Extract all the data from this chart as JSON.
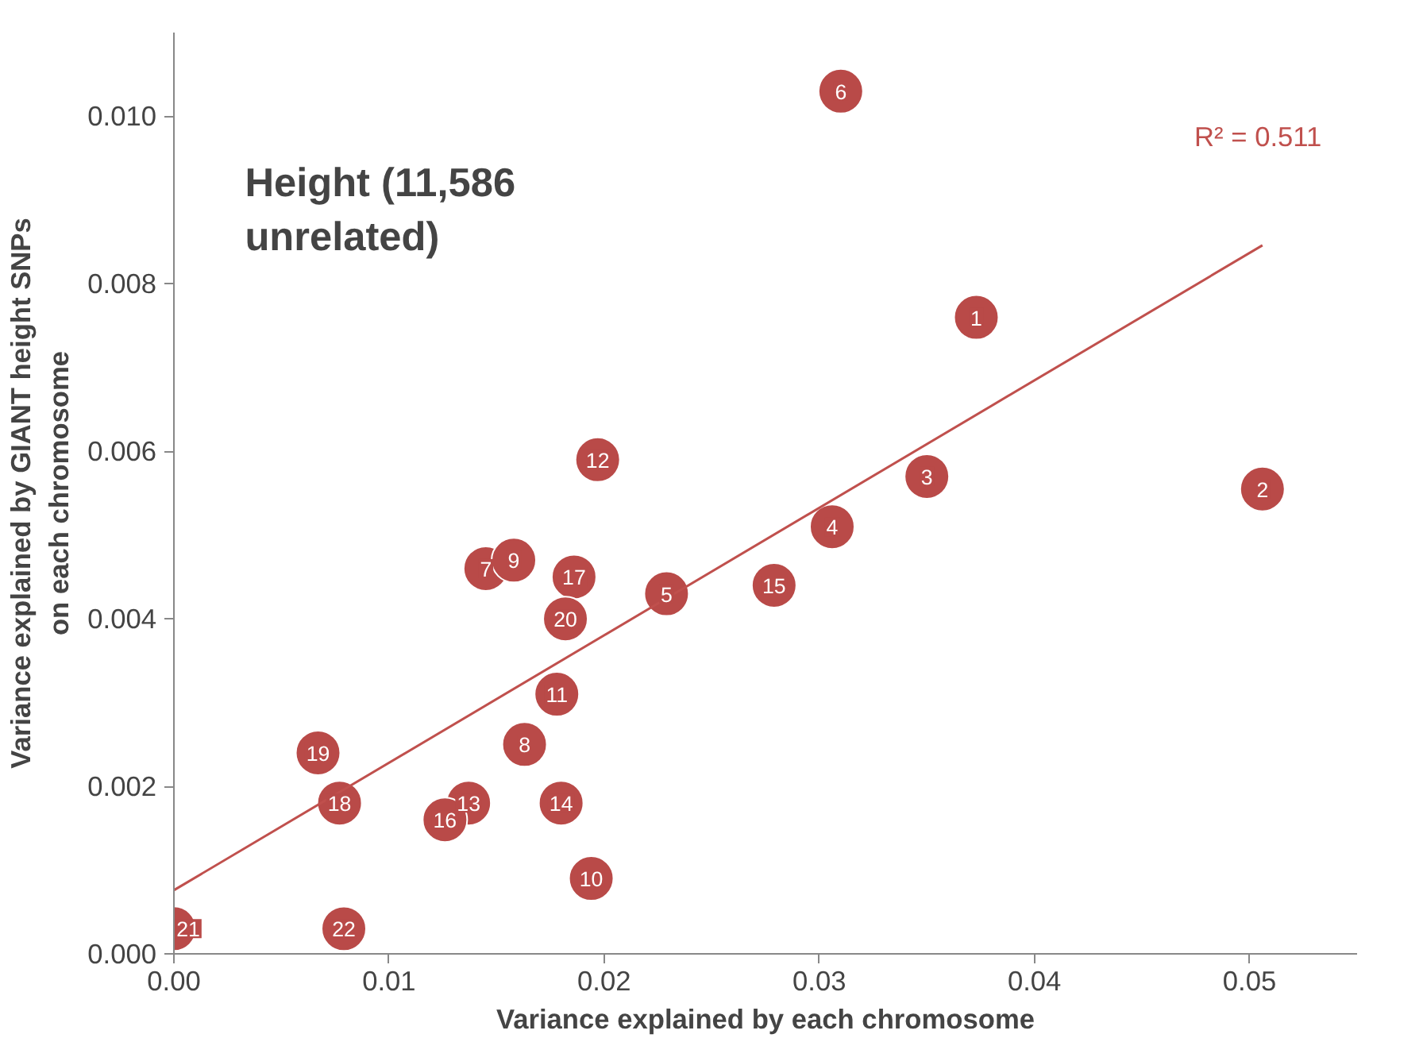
{
  "chart_data": {
    "type": "scatter",
    "title": "Height (11,586 unrelated)",
    "xlabel": "Variance explained by each chromosome",
    "ylabel": "Variance explained by GIANT height SNPs on each chromosome",
    "annotations": [
      "R² = 0.511",
      {
        "text": "1",
        "x": 0.0373,
        "y": 0.0076
      },
      {
        "text": "2",
        "x": 0.0506,
        "y": 0.00555
      },
      {
        "text": "3",
        "x": 0.035,
        "y": 0.0057
      },
      {
        "text": "4",
        "x": 0.0306,
        "y": 0.0051
      },
      {
        "text": "5",
        "x": 0.0229,
        "y": 0.0043
      },
      {
        "text": "6",
        "x": 0.031,
        "y": 0.0103
      },
      {
        "text": "7",
        "x": 0.0145,
        "y": 0.0046
      },
      {
        "text": "8",
        "x": 0.0163,
        "y": 0.0025
      },
      {
        "text": "9",
        "x": 0.0158,
        "y": 0.0047
      },
      {
        "text": "10",
        "x": 0.0194,
        "y": 0.0009
      },
      {
        "text": "11",
        "x": 0.0178,
        "y": 0.0031
      },
      {
        "text": "12",
        "x": 0.0197,
        "y": 0.0059
      },
      {
        "text": "13",
        "x": 0.0137,
        "y": 0.0018
      },
      {
        "text": "14",
        "x": 0.018,
        "y": 0.0018
      },
      {
        "text": "15",
        "x": 0.0279,
        "y": 0.0044
      },
      {
        "text": "16",
        "x": 0.0126,
        "y": 0.0016
      },
      {
        "text": "17",
        "x": 0.0186,
        "y": 0.0045
      },
      {
        "text": "18",
        "x": 0.0077,
        "y": 0.0018
      },
      {
        "text": "19",
        "x": 0.0067,
        "y": 0.0024
      },
      {
        "text": "20",
        "x": 0.0182,
        "y": 0.004
      },
      {
        "text": "21",
        "x": 0.0,
        "y": 0.0003
      },
      {
        "text": "22",
        "x": 0.0079,
        "y": 0.0003
      }
    ],
    "xlim": [
      0,
      0.055
    ],
    "ylim": [
      0,
      0.011
    ],
    "xticks": [
      {
        "value": 0,
        "label": "0.00"
      },
      {
        "value": 0.01,
        "label": "0.01"
      },
      {
        "value": 0.02,
        "label": "0.02"
      },
      {
        "value": 0.03,
        "label": "0.03"
      },
      {
        "value": 0.04,
        "label": "0.04"
      },
      {
        "value": 0.05,
        "label": "0.05"
      }
    ],
    "yticks": [
      {
        "value": 0,
        "label": "0.000"
      },
      {
        "value": 0.002,
        "label": "0.002"
      },
      {
        "value": 0.004,
        "label": "0.004"
      },
      {
        "value": 0.006,
        "label": "0.006"
      },
      {
        "value": 0.008,
        "label": "0.008"
      },
      {
        "value": 0.01,
        "label": "0.010"
      }
    ],
    "grid": false,
    "series": [
      {
        "color": "#b94a48",
        "marker": "circle",
        "x": [
          0.0373,
          0.0506,
          0.035,
          0.0306,
          0.0229,
          0.031,
          0.0145,
          0.0163,
          0.0158,
          0.0194,
          0.0178,
          0.0197,
          0.0137,
          0.018,
          0.0279,
          0.0126,
          0.0186,
          0.0077,
          0.0067,
          0.0182,
          0.0,
          0.0079
        ],
        "values": [
          0.0076,
          0.00555,
          0.0057,
          0.0051,
          0.0043,
          0.0103,
          0.0046,
          0.0025,
          0.0047,
          0.0009,
          0.0031,
          0.0059,
          0.0018,
          0.0018,
          0.0044,
          0.0016,
          0.0045,
          0.0018,
          0.0024,
          0.004,
          0.0003,
          0.0003
        ]
      },
      {
        "type": "line",
        "color": "#c0504d",
        "x": [
          0.0,
          0.0506
        ],
        "values": [
          0.00076,
          0.00846
        ]
      }
    ]
  }
}
